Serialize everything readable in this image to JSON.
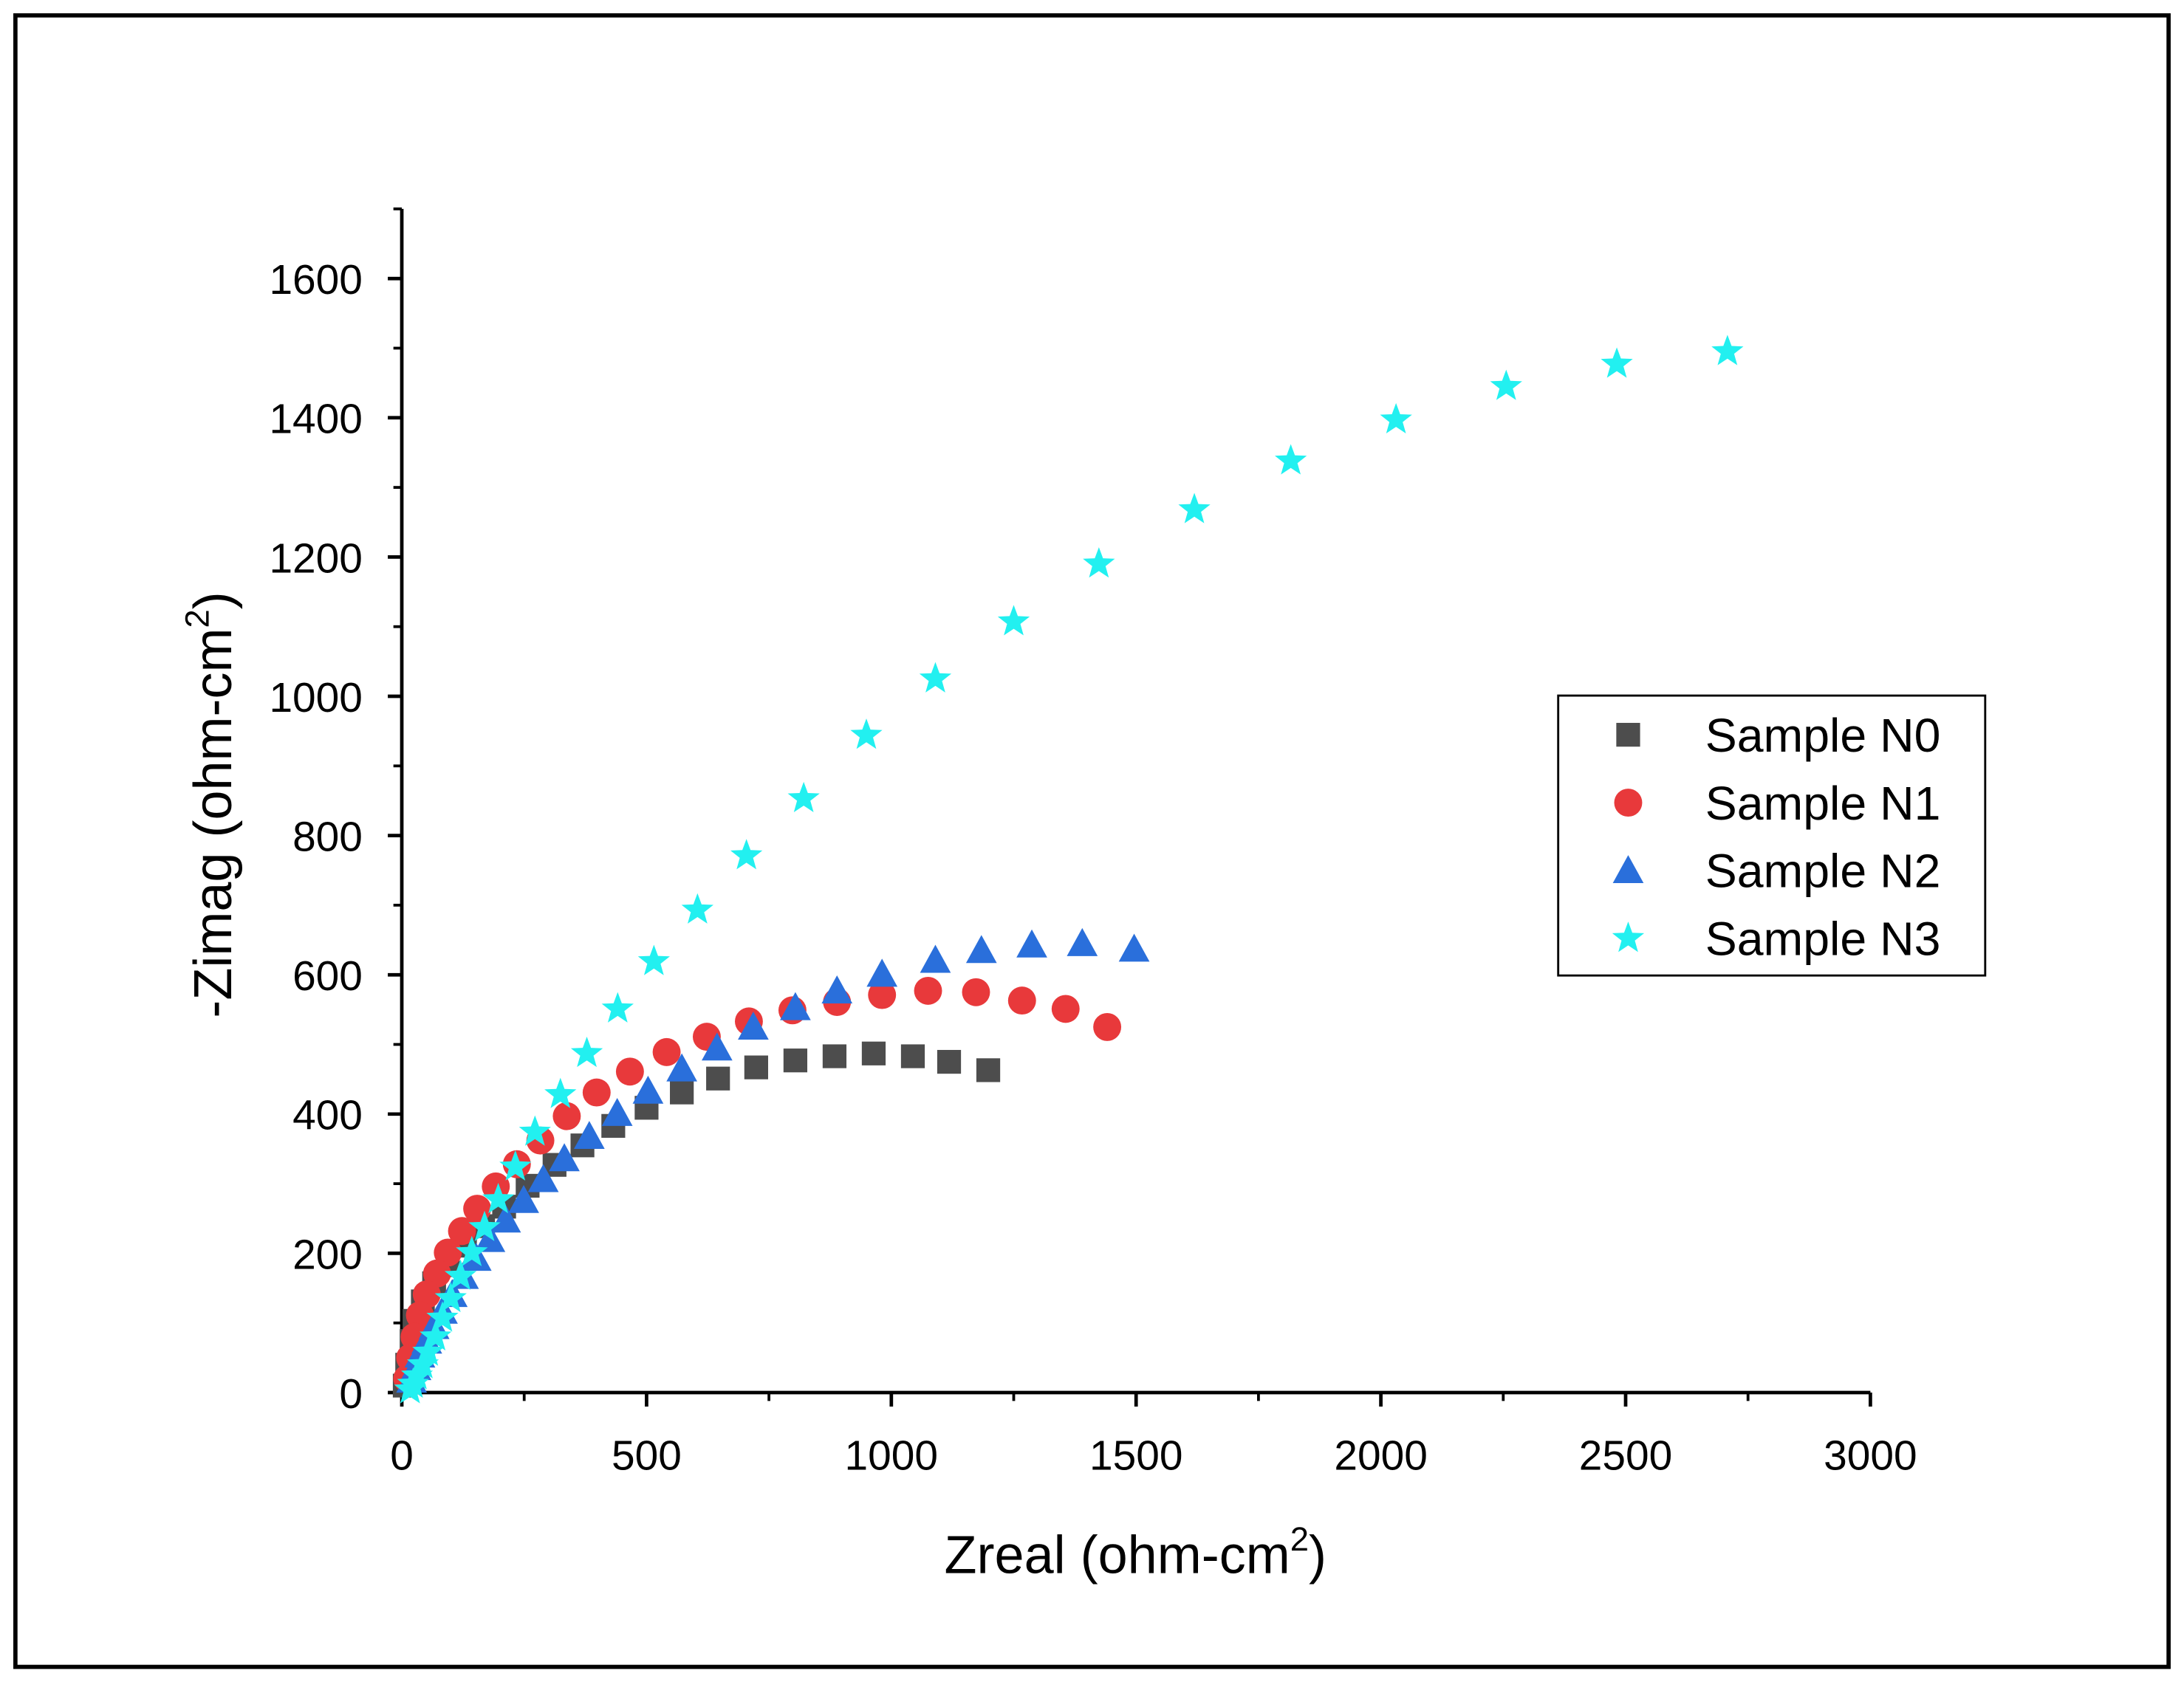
{
  "chart_data": {
    "type": "scatter",
    "xlabel": [
      "Zreal (ohm-cm",
      "2",
      ")"
    ],
    "ylabel": [
      "-Zimag (ohm-cm",
      "2",
      ")"
    ],
    "xlim": [
      0,
      3000
    ],
    "ylim": [
      0,
      1700
    ],
    "xticks": [
      0,
      500,
      1000,
      1500,
      2000,
      2500,
      3000
    ],
    "yticks": [
      0,
      200,
      400,
      600,
      800,
      1000,
      1200,
      1400,
      1600
    ],
    "xticks_minor": [
      250,
      750,
      1250,
      1750,
      2250,
      2750
    ],
    "yticks_minor": [
      100,
      300,
      500,
      700,
      900,
      1100,
      1300,
      1500,
      1700
    ],
    "legend": "right",
    "series": [
      {
        "name": "Sample N0",
        "color": "#4d4d4d",
        "marker": "square",
        "x": [
          1198,
          1118,
          1044,
          964,
          884,
          804,
          724,
          646,
          572,
          500,
          432,
          369,
          312,
          257,
          209,
          166,
          129,
          94,
          66,
          43,
          26,
          20,
          11,
          6
        ],
        "values": [
          463,
          475,
          483,
          487,
          483,
          477,
          467,
          451,
          431,
          409,
          383,
          355,
          327,
          297,
          267,
          239,
          211,
          183,
          157,
          131,
          103,
          74,
          40,
          10
        ]
      },
      {
        "name": "Sample N1",
        "color": "#e8393b",
        "marker": "circle",
        "x": [
          1441,
          1356,
          1267,
          1173,
          1075,
          981,
          889,
          798,
          709,
          623,
          541,
          466,
          398,
          337,
          283,
          235,
          192,
          154,
          123,
          94,
          72,
          51,
          37,
          26,
          17,
          11
        ],
        "values": [
          525,
          551,
          563,
          575,
          577,
          571,
          561,
          549,
          533,
          511,
          489,
          461,
          431,
          397,
          362,
          328,
          296,
          264,
          232,
          201,
          171,
          141,
          111,
          80,
          50,
          20
        ]
      },
      {
        "name": "Sample N2",
        "color": "#2a6fdb",
        "marker": "triangle",
        "x": [
          1496,
          1390,
          1287,
          1184,
          1090,
          981,
          889,
          804,
          718,
          644,
          572,
          503,
          440,
          383,
          332,
          289,
          249,
          212,
          180,
          152,
          126,
          103,
          83,
          66,
          51,
          37,
          29,
          20
        ],
        "values": [
          637,
          645,
          643,
          635,
          621,
          601,
          577,
          553,
          525,
          495,
          465,
          433,
          401,
          368,
          336,
          306,
          276,
          248,
          220,
          193,
          167,
          141,
          117,
          95,
          74,
          54,
          36,
          18
        ]
      },
      {
        "name": "Sample N3",
        "color": "#22f0f0",
        "marker": "star",
        "x": [
          2708,
          2482,
          2256,
          2031,
          1816,
          1619,
          1424,
          1250,
          1090,
          949,
          821,
          704,
          604,
          515,
          441,
          378,
          324,
          272,
          232,
          197,
          169,
          143,
          120,
          100,
          83,
          69,
          54,
          43,
          31,
          23,
          17
        ],
        "values": [
          1495,
          1477,
          1445,
          1397,
          1338,
          1268,
          1190,
          1107,
          1025,
          944,
          853,
          771,
          693,
          619,
          551,
          487,
          428,
          374,
          324,
          277,
          237,
          201,
          167,
          135,
          107,
          80,
          58,
          40,
          24,
          12,
          4
        ]
      }
    ]
  }
}
